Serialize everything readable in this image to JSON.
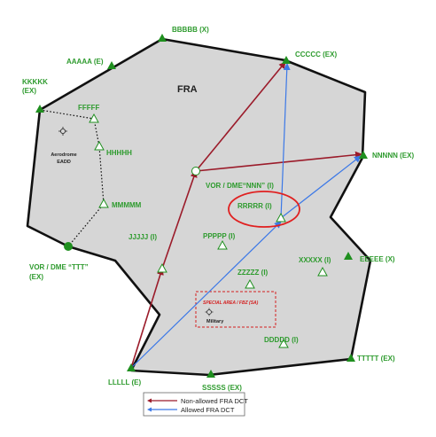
{
  "colors": {
    "area_fill": "#d6d6d6",
    "border": "#111111",
    "waypoint_green": "#1f8f1f",
    "label_green": "#2e9b2e",
    "non_allowed": "#9b1b2a",
    "allowed": "#3b78e7",
    "highlight": "#e02020",
    "special_area": "#d42020"
  },
  "fra_label": "FRA",
  "aerodrome": {
    "line1": "Aerodrome",
    "line2": "EADD"
  },
  "points": {
    "bbbbb": "BBBBB (X)",
    "aaaaa": "AAAAA (E)",
    "ccccc": "CCCCC (EX)",
    "kkkkk_1": "KKKKK",
    "kkkkk_2": "(EX)",
    "fffff": "FFFFF",
    "hhhhh": "HHHHH",
    "mmmmm": "MMMMM",
    "nnnnn": "NNNNN (EX)",
    "vor_nnn": "VOR / DME“NNN” (I)",
    "rrrrr": "RRRRR (I)",
    "ppppp": "PPPPP (I)",
    "jjjjj": "JJJJJ (I)",
    "vor_ttt_1": "VOR / DME “TTT”",
    "vor_ttt_2": "(EX)",
    "zzzzz": "ZZZZZ (I)",
    "xxxxx": "XXXXX (I)",
    "eeeee": "EEEEE (X)",
    "ddddd": "DDDDD (I)",
    "ttttt": "TTTTT (EX)",
    "lllll": "LLLLL (E)",
    "sssss": "SSSSS (EX)"
  },
  "special_area": {
    "title": "SPECIAL AREA / FBZ (SA)",
    "sub": "Military"
  },
  "legend": {
    "non_allowed": "Non-allowed FRA DCT",
    "allowed": "Allowed FRA DCT"
  }
}
